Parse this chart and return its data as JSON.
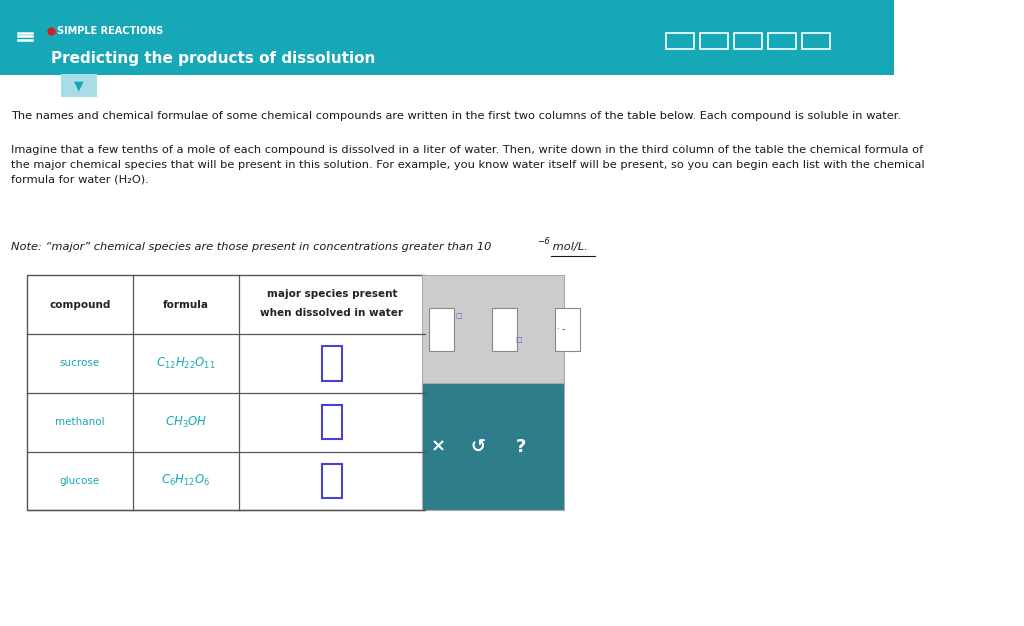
{
  "header_bg": "#17a8b8",
  "header_text_color": "#ffffff",
  "page_bg": "#ffffff",
  "body_text_color": "#1a1a1a",
  "teal_color": "#17a8b8",
  "panel_dark_bg": "#2d7d8a",
  "title_small": "SIMPLE REACTIONS",
  "title_main": "Predicting the products of dissolution",
  "para1": "The names and chemical formulae of some chemical compounds are written in the first two columns of the table below. Each compound is soluble in water.",
  "table_header_col1": "compound",
  "table_header_col2": "formula",
  "table_header_col3_line1": "major species present",
  "table_header_col3_line2": "when dissolved in water",
  "compounds": [
    "sucrose",
    "methanol",
    "glucose"
  ],
  "formulas_latex": [
    "$C_{12}H_{22}O_{11}$",
    "$CH_3OH$",
    "$C_6H_{12}O_6$"
  ]
}
